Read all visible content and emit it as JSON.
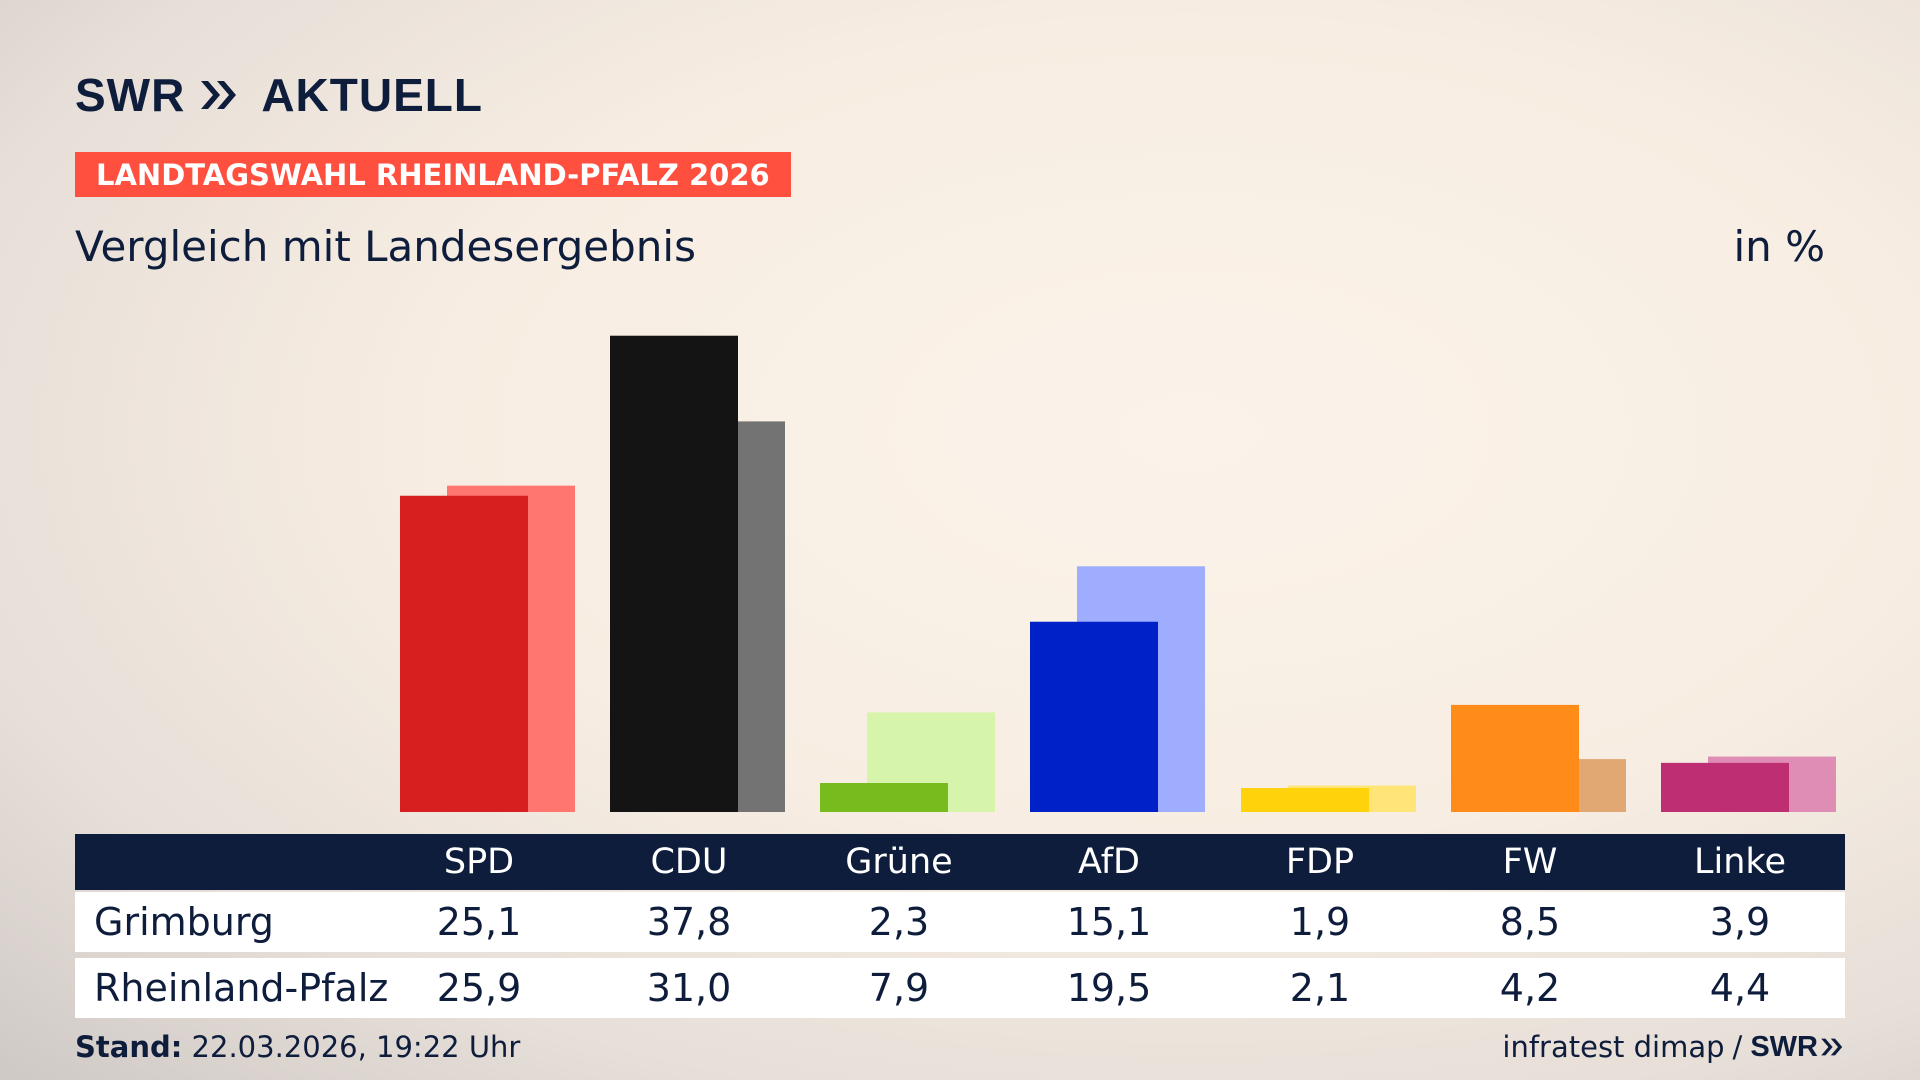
{
  "header": {
    "logo_swr": "SWR",
    "logo_aktuell": "AKTUELL",
    "badge": "LANDTAGSWAHL RHEINLAND-PFALZ 2026",
    "subtitle": "Vergleich mit Landesergebnis",
    "unit": "in %"
  },
  "colors": {
    "navy": "#0f1d3c",
    "badge": "#ff4f3f"
  },
  "chart_data": {
    "type": "bar",
    "title": "Vergleich mit Landesergebnis",
    "ylabel": "in %",
    "categories": [
      "SPD",
      "CDU",
      "Grüne",
      "AfD",
      "FDP",
      "FW",
      "Linke"
    ],
    "series": [
      {
        "name": "Grimburg",
        "values": [
          25.1,
          37.8,
          2.3,
          15.1,
          1.9,
          8.5,
          3.9
        ],
        "colors": [
          "#d71f1f",
          "#141414",
          "#77bb1d",
          "#0021c8",
          "#ffd20c",
          "#ff8c18",
          "#bd2e72"
        ]
      },
      {
        "name": "Rheinland-Pfalz",
        "values": [
          25.9,
          31.0,
          7.9,
          19.5,
          2.1,
          4.2,
          4.4
        ],
        "colors": [
          "#ff7670",
          "#737373",
          "#d6f5ab",
          "#9fadff",
          "#ffe577",
          "#e1a873",
          "#e08db6"
        ]
      }
    ],
    "grid": false,
    "legend": "table-below"
  },
  "footer": {
    "stand_label": "Stand:",
    "stand_value": "22.03.2026, 19:22 Uhr",
    "source": "infratest dimap",
    "separator": "/",
    "logo_swr": "SWR"
  }
}
